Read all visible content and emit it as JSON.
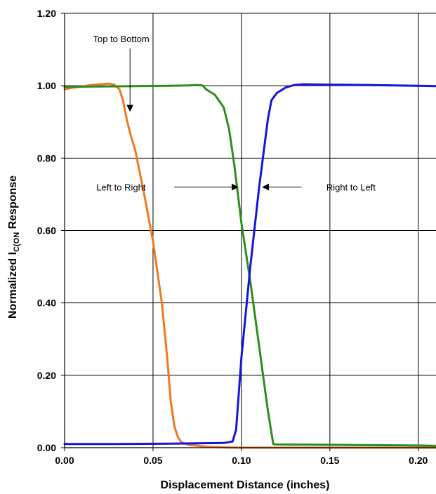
{
  "chart_data": {
    "type": "line",
    "title": "",
    "xlabel": "Displacement Distance (inches)",
    "ylabel": {
      "prefix": "Normalized I",
      "subscript": "C(ON",
      "suffix": " Response"
    },
    "xlim": [
      0,
      0.21
    ],
    "ylim": [
      0,
      1.2
    ],
    "xticks": [
      0,
      0.05,
      0.1,
      0.15,
      0.2
    ],
    "xtick_labels": [
      "0.00",
      "0.05",
      "0.10",
      "0.15",
      "0.20"
    ],
    "yticks": [
      0,
      0.2,
      0.4,
      0.6,
      0.8,
      1.0,
      1.2
    ],
    "ytick_labels": [
      "0.00",
      "0.20",
      "0.40",
      "0.60",
      "0.80",
      "1.00",
      "1.20"
    ],
    "grid": true,
    "legend": "none",
    "series": [
      {
        "color": "#f07820",
        "x": [
          0,
          0.005,
          0.01,
          0.015,
          0.02,
          0.025,
          0.028,
          0.031,
          0.033,
          0.035,
          0.037,
          0.04,
          0.045,
          0.05,
          0.055,
          0.058,
          0.06,
          0.062,
          0.064,
          0.066,
          0.07,
          0.08,
          0.09,
          0.1,
          0.12,
          0.15,
          0.2,
          0.21
        ],
        "y": [
          0.99,
          0.995,
          0.998,
          1.002,
          1.004,
          1.006,
          1.003,
          0.99,
          0.96,
          0.91,
          0.87,
          0.82,
          0.7,
          0.57,
          0.4,
          0.25,
          0.13,
          0.06,
          0.03,
          0.015,
          0.008,
          0.003,
          0.001,
          0,
          0,
          0,
          0,
          0
        ]
      },
      {
        "color": "#2f8c1e",
        "x": [
          0,
          0.02,
          0.04,
          0.06,
          0.07,
          0.075,
          0.078,
          0.08,
          0.085,
          0.09,
          0.093,
          0.096,
          0.1,
          0.105,
          0.11,
          0.115,
          0.118,
          0.119,
          0.12,
          0.15,
          0.2,
          0.21
        ],
        "y": [
          0.997,
          0.998,
          0.999,
          1.0,
          1.001,
          1.002,
          1.001,
          0.99,
          0.975,
          0.94,
          0.88,
          0.78,
          0.62,
          0.46,
          0.28,
          0.1,
          0.01,
          0.009,
          0.009,
          0.008,
          0.006,
          0.005
        ]
      },
      {
        "color": "#1414e0",
        "x": [
          0,
          0.03,
          0.06,
          0.09,
          0.095,
          0.097,
          0.1,
          0.105,
          0.11,
          0.115,
          0.117,
          0.12,
          0.125,
          0.13,
          0.135,
          0.15,
          0.17,
          0.2,
          0.21
        ],
        "y": [
          0.01,
          0.01,
          0.011,
          0.013,
          0.017,
          0.05,
          0.25,
          0.5,
          0.72,
          0.91,
          0.96,
          0.98,
          0.995,
          1.002,
          1.004,
          1.003,
          1.002,
          1.0,
          0.999
        ]
      }
    ],
    "annotations": [
      {
        "text": "Top to Bottom",
        "text_x": 0.032,
        "text_y": 1.13,
        "arrow_to": [
          0.037,
          0.93
        ]
      },
      {
        "text": "Left to Right",
        "text_x": 0.018,
        "text_y": 0.72,
        "arrow_from": [
          0.062,
          0.72
        ],
        "arrow_to": [
          0.098,
          0.72
        ]
      },
      {
        "text": "Right to Left",
        "text_x": 0.148,
        "text_y": 0.72,
        "arrow_from": [
          0.134,
          0.72
        ],
        "arrow_to": [
          0.112,
          0.72
        ]
      }
    ]
  }
}
